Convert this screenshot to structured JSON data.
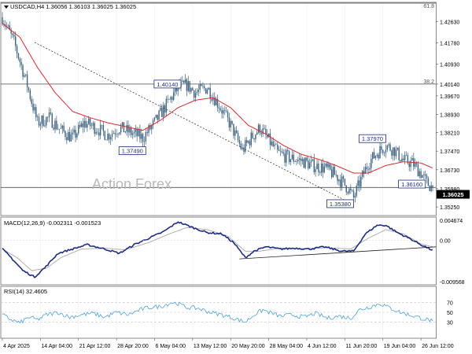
{
  "header": {
    "symbol_ohlc": "USDCAD,H4  1.36056 1.36103 1.36025 1.36025",
    "fib_top_label": "61.8",
    "fib_mid_label": "38.2"
  },
  "watermark": "Action Forex",
  "macd_label": "MACD(12,26,9) -0.002311 -0.001523",
  "rsi_label": "RSI(14) 32.4605",
  "colors": {
    "candle": "#3d6382",
    "ma": "#e0282a",
    "macd": "#1c2d87",
    "signal": "#a8a8a8",
    "rsi": "#4aa3d8",
    "level_line": "#4d4d4d",
    "trendline": "#222222",
    "grid": "#d6d6d6",
    "price_box": "#000000"
  },
  "chart_data": [
    {
      "type": "candlestick",
      "title": "USDCAD,H4  1.36056 1.36103 1.36025 1.36025",
      "ylim": [
        1.3494,
        1.4336
      ],
      "y_ticks": [
        "1.42630",
        "1.41780",
        "1.40930",
        "1.40140",
        "1.39670",
        "1.38930",
        "1.38210",
        "1.37470",
        "1.36730",
        "1.35980",
        "1.35250"
      ],
      "x_ticks": [
        "4 Apr 2025",
        "14 Apr 04:00",
        "21 Apr 12:00",
        "28 Apr 20:00",
        "6 May 04:00",
        "13 May 12:00",
        "20 May 20:00",
        "28 May 04:00",
        "4 Jun 12:00",
        "11 Jun 20:00",
        "19 Jun 04:00",
        "26 Jun 12:00"
      ],
      "current_price": "1.36025",
      "close_path": [
        [
          0,
          1.428
        ],
        [
          8,
          1.418
        ],
        [
          16,
          1.403
        ],
        [
          24,
          1.386
        ],
        [
          32,
          1.388
        ],
        [
          40,
          1.383
        ],
        [
          48,
          1.38
        ],
        [
          56,
          1.386
        ],
        [
          64,
          1.384
        ],
        [
          72,
          1.381
        ],
        [
          80,
          1.384
        ],
        [
          88,
          1.382
        ],
        [
          96,
          1.38
        ],
        [
          104,
          1.386
        ],
        [
          112,
          1.393
        ],
        [
          120,
          1.4
        ],
        [
          126,
          1.401
        ],
        [
          132,
          1.398
        ],
        [
          140,
          1.4
        ],
        [
          148,
          1.393
        ],
        [
          156,
          1.385
        ],
        [
          164,
          1.375
        ],
        [
          170,
          1.38
        ],
        [
          176,
          1.384
        ],
        [
          182,
          1.379
        ],
        [
          188,
          1.374
        ],
        [
          196,
          1.372
        ],
        [
          204,
          1.371
        ],
        [
          212,
          1.369
        ],
        [
          220,
          1.368
        ],
        [
          228,
          1.365
        ],
        [
          236,
          1.36
        ],
        [
          240,
          1.356
        ],
        [
          244,
          1.362
        ],
        [
          250,
          1.37
        ],
        [
          256,
          1.374
        ],
        [
          262,
          1.377
        ],
        [
          268,
          1.375
        ],
        [
          274,
          1.371
        ],
        [
          280,
          1.37
        ],
        [
          286,
          1.366
        ],
        [
          290,
          1.362
        ],
        [
          294,
          1.36025
        ]
      ],
      "moving_average": [
        [
          0,
          1.4255
        ],
        [
          12,
          1.42
        ],
        [
          24,
          1.408
        ],
        [
          36,
          1.398
        ],
        [
          48,
          1.3905
        ],
        [
          60,
          1.388
        ],
        [
          72,
          1.386
        ],
        [
          84,
          1.3845
        ],
        [
          96,
          1.383
        ],
        [
          108,
          1.387
        ],
        [
          120,
          1.392
        ],
        [
          132,
          1.395
        ],
        [
          144,
          1.396
        ],
        [
          156,
          1.392
        ],
        [
          168,
          1.385
        ],
        [
          180,
          1.3815
        ],
        [
          192,
          1.377
        ],
        [
          204,
          1.3735
        ],
        [
          216,
          1.3715
        ],
        [
          228,
          1.369
        ],
        [
          240,
          1.366
        ],
        [
          250,
          1.366
        ],
        [
          262,
          1.369
        ],
        [
          274,
          1.3705
        ],
        [
          286,
          1.37
        ],
        [
          294,
          1.368
        ]
      ],
      "horizontal_levels": [
        {
          "value": 1.4336,
          "label": "61.8"
        },
        {
          "value": 1.4014,
          "label": "38.2"
        },
        {
          "value": 1.36025,
          "label": ""
        }
      ],
      "trendline": {
        "from": [
          22,
          1.418
        ],
        "to": [
          238,
          1.354
        ]
      },
      "annotations": [
        {
          "text": "1.40140",
          "x": 122,
          "y": 1.4014,
          "anchor": "end"
        },
        {
          "text": "1.37490",
          "x": 98,
          "y": 1.3749,
          "anchor": "end"
        },
        {
          "text": "1.37970",
          "x": 262,
          "y": 1.3797,
          "anchor": "end"
        },
        {
          "text": "1.36160",
          "x": 289,
          "y": 1.3616,
          "anchor": "end"
        },
        {
          "text": "1.35380",
          "x": 240,
          "y": 1.3538,
          "anchor": "end"
        }
      ],
      "watermark": "Action Forex"
    },
    {
      "type": "line",
      "title": "MACD(12,26,9) -0.002311 -0.001523",
      "ylim": [
        -0.009568,
        0.004674
      ],
      "y_ticks": [
        "0.004674",
        "0.00",
        "-0.009568"
      ],
      "series": [
        {
          "name": "",
          "values": [
            [
              0,
              -0.002
            ],
            [
              6,
              -0.004
            ],
            [
              14,
              -0.007
            ],
            [
              22,
              -0.0085
            ],
            [
              30,
              -0.006
            ],
            [
              38,
              -0.003
            ],
            [
              48,
              -0.002
            ],
            [
              58,
              -0.001
            ],
            [
              70,
              -0.002
            ],
            [
              80,
              -0.003
            ],
            [
              90,
              -0.001
            ],
            [
              100,
              0.0005
            ],
            [
              110,
              0.002
            ],
            [
              120,
              0.0043
            ],
            [
              130,
              0.003
            ],
            [
              140,
              0.0018
            ],
            [
              150,
              0.0015
            ],
            [
              158,
              -0.0005
            ],
            [
              166,
              -0.004
            ],
            [
              172,
              -0.0025
            ],
            [
              180,
              -0.0015
            ],
            [
              190,
              -0.002
            ],
            [
              200,
              -0.0018
            ],
            [
              210,
              -0.002
            ],
            [
              220,
              -0.0015
            ],
            [
              232,
              -0.0025
            ],
            [
              240,
              -0.0025
            ],
            [
              248,
              0.0015
            ],
            [
              256,
              0.0035
            ],
            [
              262,
              0.0035
            ],
            [
              270,
              0.0018
            ],
            [
              278,
              0.0005
            ],
            [
              286,
              -0.001
            ],
            [
              294,
              -0.0023
            ]
          ]
        },
        {
          "name": "",
          "values": [
            [
              0,
              -0.002
            ],
            [
              10,
              -0.004
            ],
            [
              20,
              -0.007
            ],
            [
              30,
              -0.0065
            ],
            [
              40,
              -0.004
            ],
            [
              54,
              -0.002
            ],
            [
              70,
              -0.0018
            ],
            [
              84,
              -0.0022
            ],
            [
              100,
              -0.0005
            ],
            [
              114,
              0.0015
            ],
            [
              126,
              0.003
            ],
            [
              140,
              0.0025
            ],
            [
              154,
              0.001
            ],
            [
              166,
              -0.0025
            ],
            [
              176,
              -0.0025
            ],
            [
              190,
              -0.0018
            ],
            [
              206,
              -0.0019
            ],
            [
              222,
              -0.0017
            ],
            [
              238,
              -0.002
            ],
            [
              250,
              0.0005
            ],
            [
              262,
              0.0025
            ],
            [
              274,
              0.0015
            ],
            [
              286,
              -0.0008
            ],
            [
              294,
              -0.0015
            ]
          ]
        }
      ],
      "trendline": {
        "from": [
          162,
          -0.0043
        ],
        "to": [
          296,
          -0.0015
        ]
      }
    },
    {
      "type": "line",
      "title": "RSI(14) 32.4605",
      "ylim": [
        0,
        100
      ],
      "y_ticks": [
        "70",
        "50",
        "30"
      ],
      "series": [
        {
          "name": "",
          "values": [
            [
              0,
              45
            ],
            [
              6,
              35
            ],
            [
              12,
              28
            ],
            [
              18,
              40
            ],
            [
              24,
              35
            ],
            [
              30,
              45
            ],
            [
              38,
              50
            ],
            [
              46,
              40
            ],
            [
              54,
              45
            ],
            [
              62,
              48
            ],
            [
              70,
              40
            ],
            [
              78,
              50
            ],
            [
              86,
              45
            ],
            [
              94,
              55
            ],
            [
              100,
              60
            ],
            [
              108,
              62
            ],
            [
              116,
              70
            ],
            [
              120,
              68
            ],
            [
              126,
              60
            ],
            [
              134,
              58
            ],
            [
              142,
              50
            ],
            [
              150,
              45
            ],
            [
              158,
              38
            ],
            [
              166,
              30
            ],
            [
              172,
              45
            ],
            [
              178,
              55
            ],
            [
              184,
              48
            ],
            [
              190,
              42
            ],
            [
              198,
              45
            ],
            [
              206,
              40
            ],
            [
              214,
              48
            ],
            [
              222,
              38
            ],
            [
              230,
              42
            ],
            [
              238,
              38
            ],
            [
              244,
              55
            ],
            [
              252,
              62
            ],
            [
              258,
              68
            ],
            [
              264,
              60
            ],
            [
              272,
              50
            ],
            [
              278,
              45
            ],
            [
              286,
              38
            ],
            [
              294,
              32.46
            ]
          ]
        }
      ]
    }
  ]
}
